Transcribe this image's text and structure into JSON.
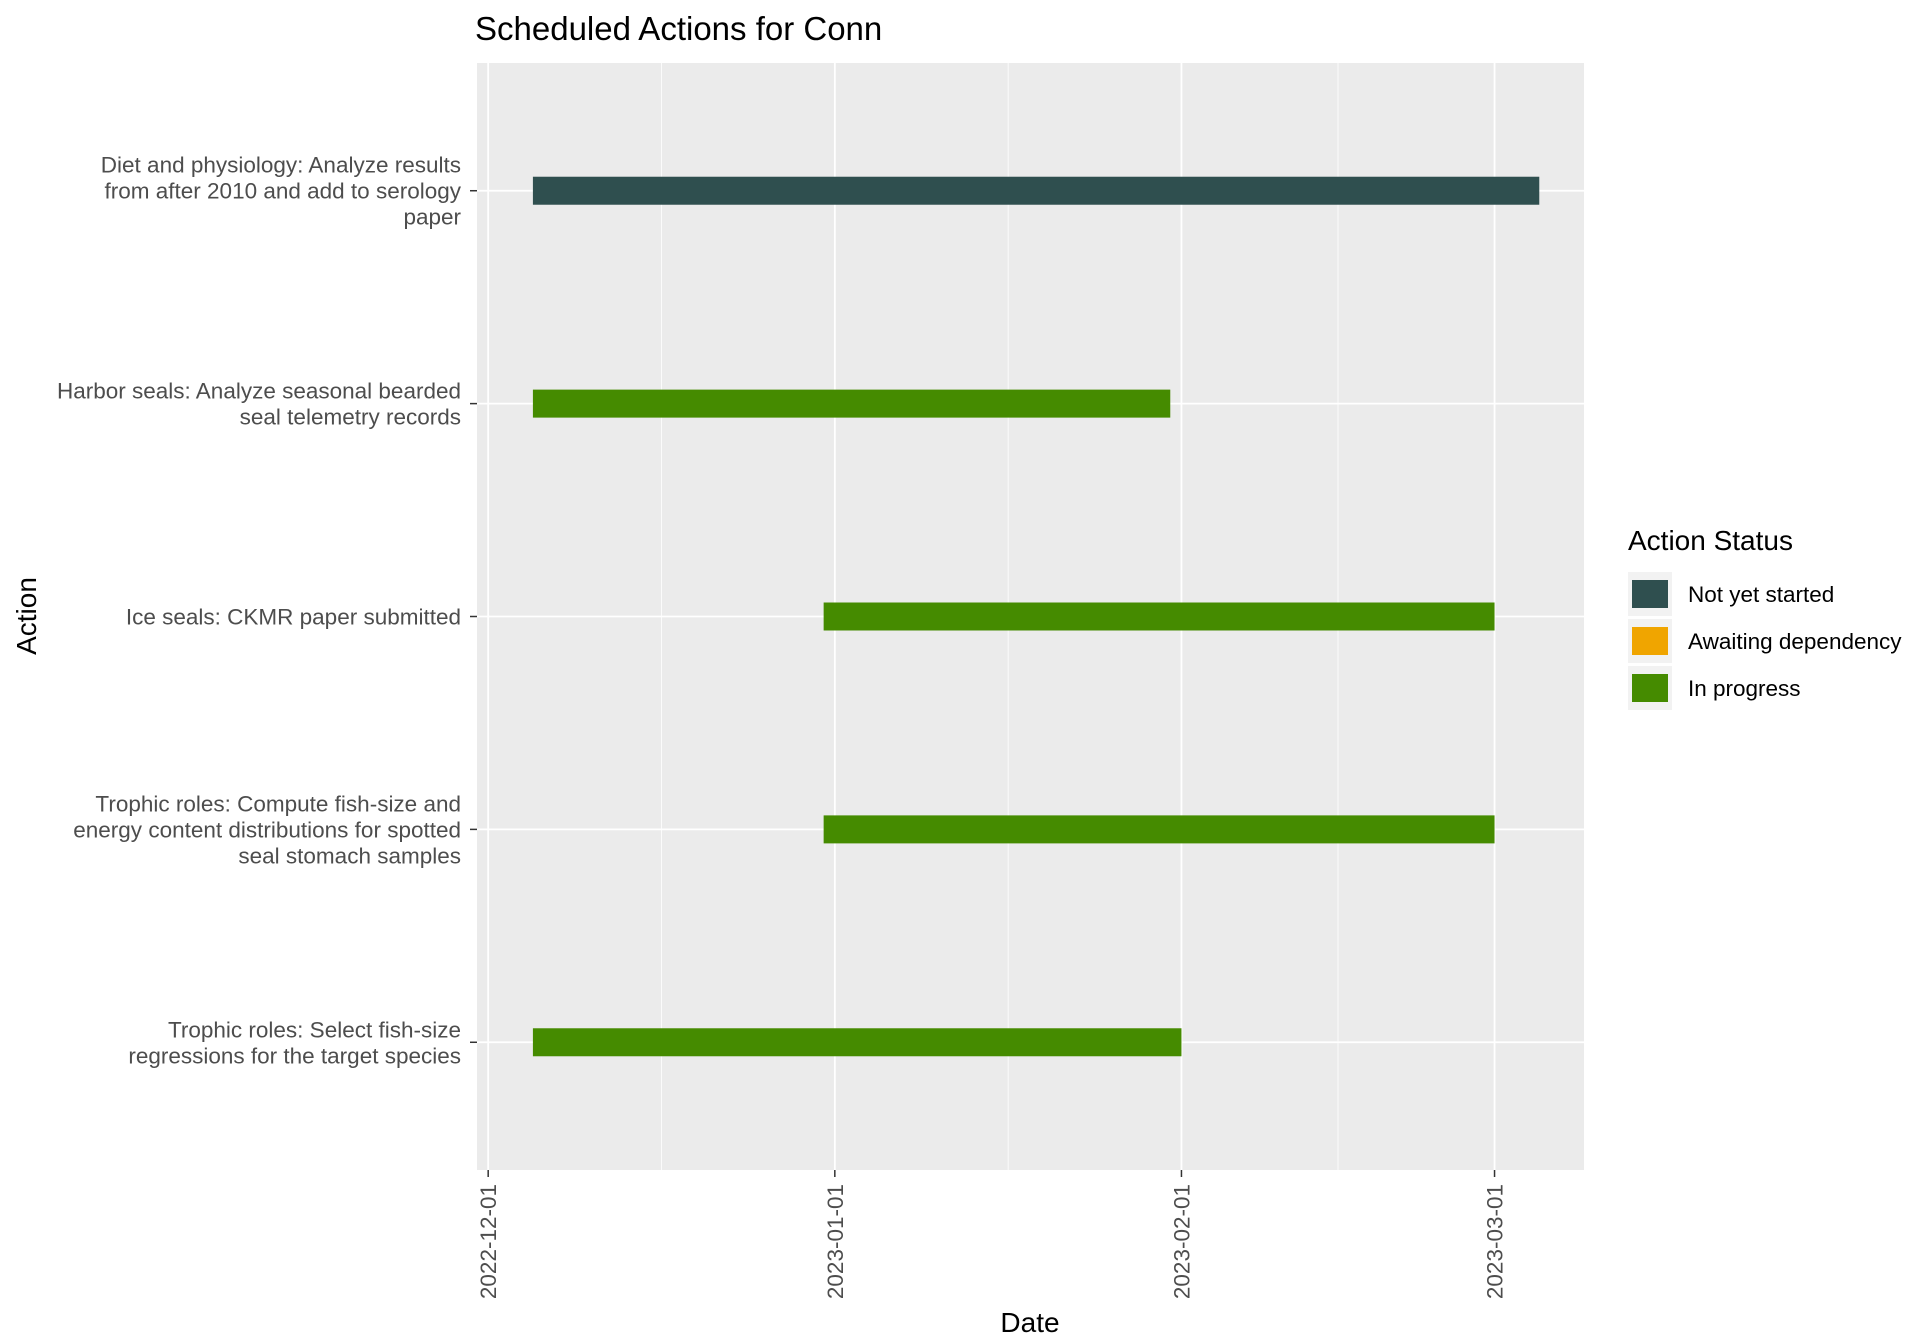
{
  "chart_data": {
    "type": "gantt",
    "title": "Scheduled Actions for Conn",
    "xlabel": "Date",
    "ylabel": "Action",
    "x_type": "date",
    "xlim": [
      "2022-11-30",
      "2023-03-09"
    ],
    "x_ticks": [
      "2022-12-01",
      "2023-01-01",
      "2023-02-01",
      "2023-03-01"
    ],
    "grid": true,
    "legend_position": "right",
    "legend_title": "Action Status",
    "statuses": [
      {
        "name": "Not yet started",
        "color": "#2f4f4f"
      },
      {
        "name": "Awaiting dependency",
        "color": "#f0a500"
      },
      {
        "name": "In progress",
        "color": "#458b00"
      }
    ],
    "tasks": [
      {
        "label_lines": [
          "Diet and physiology: Analyze results",
          "from after 2010 and add to serology",
          "paper"
        ],
        "start": "2022-12-05",
        "end": "2023-03-05",
        "status": "Not yet started"
      },
      {
        "label_lines": [
          "Harbor seals: Analyze seasonal bearded",
          "seal telemetry records"
        ],
        "start": "2022-12-05",
        "end": "2023-01-31",
        "status": "In progress"
      },
      {
        "label_lines": [
          "Ice seals: CKMR paper submitted"
        ],
        "start": "2022-12-31",
        "end": "2023-03-01",
        "status": "In progress"
      },
      {
        "label_lines": [
          "Trophic roles: Compute fish-size and",
          "energy content distributions for spotted",
          "seal stomach samples"
        ],
        "start": "2022-12-31",
        "end": "2023-03-01",
        "status": "In progress"
      },
      {
        "label_lines": [
          "Trophic roles: Select fish-size",
          "regressions for the target species"
        ],
        "start": "2022-12-05",
        "end": "2023-02-01",
        "status": "In progress"
      }
    ]
  },
  "theme": {
    "panel_bg": "#ebebeb",
    "grid_color": "#ffffff",
    "tick_color": "#333333"
  }
}
